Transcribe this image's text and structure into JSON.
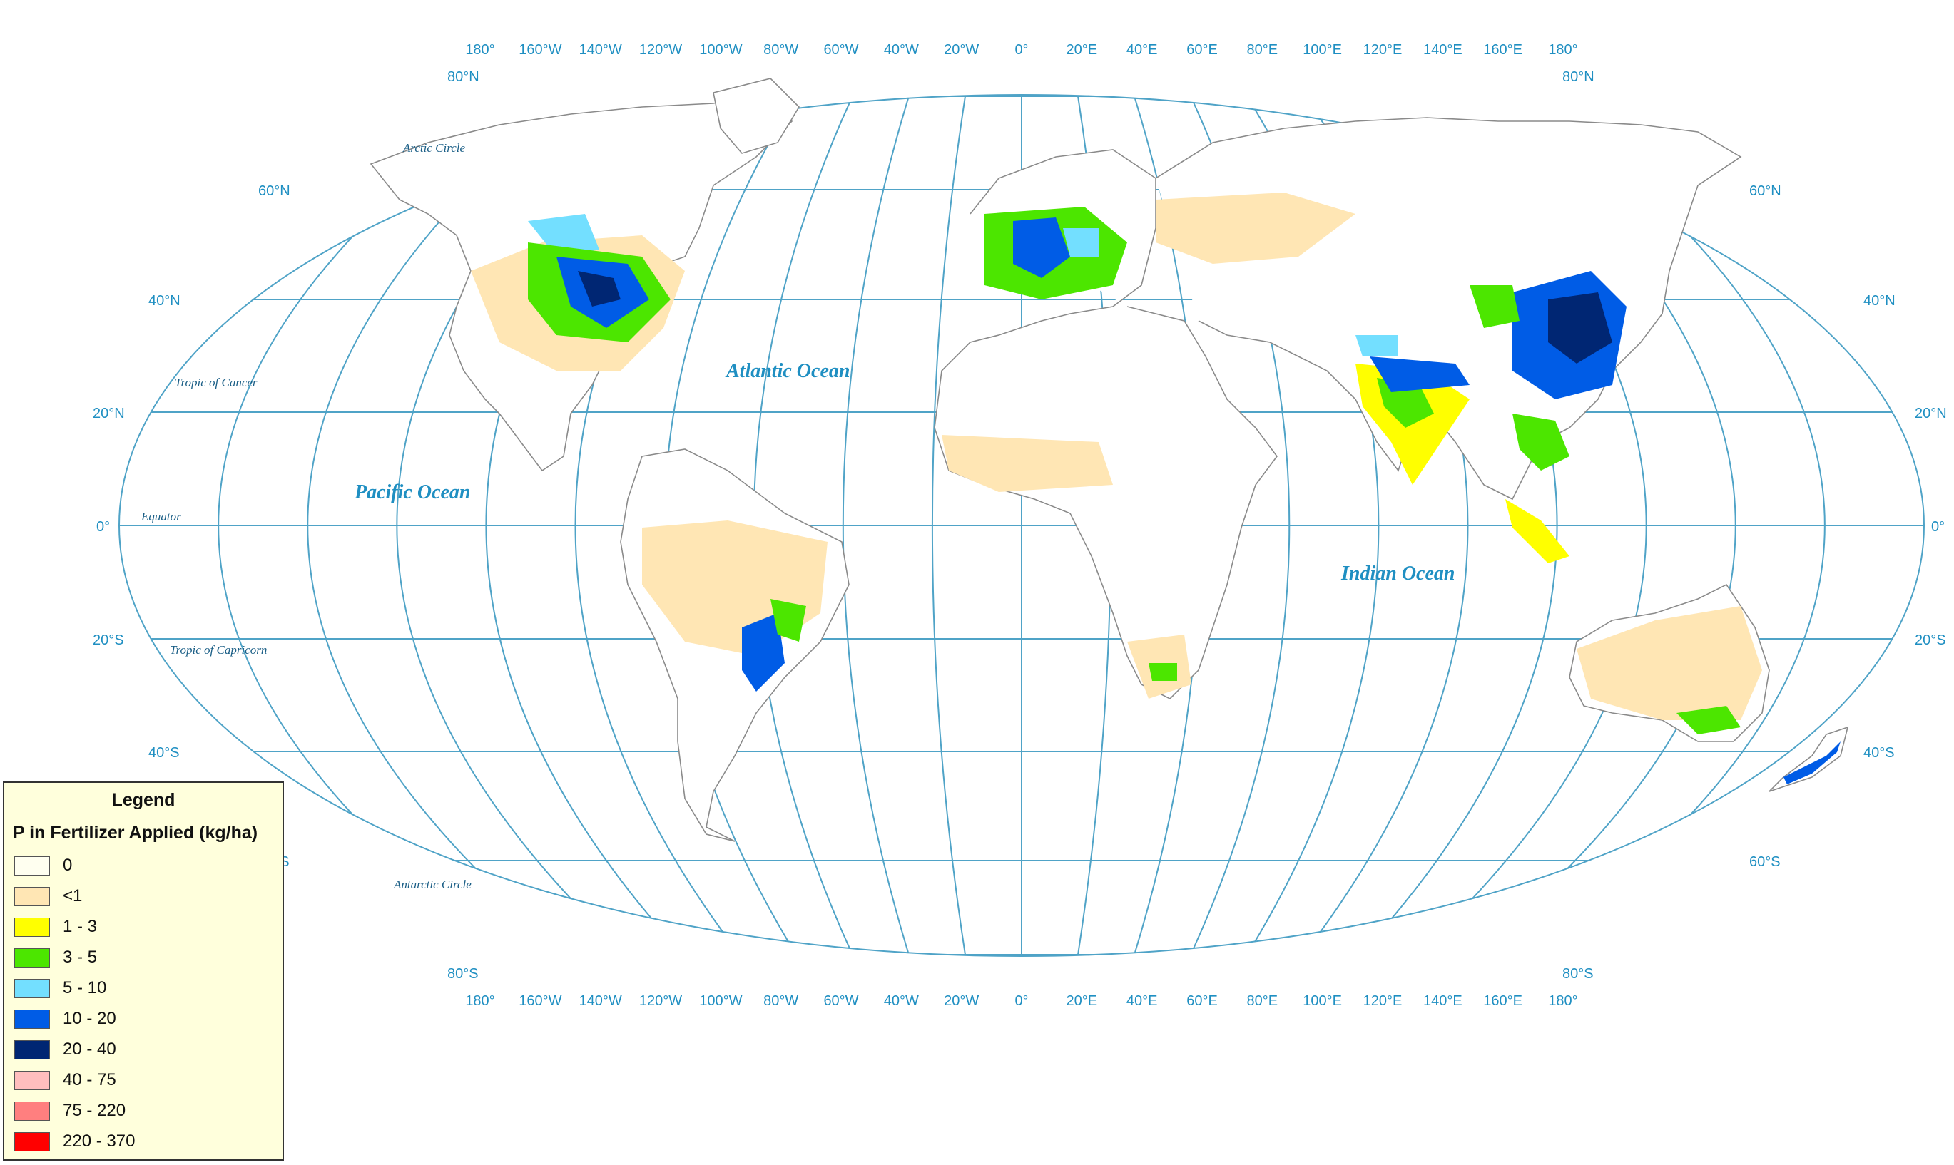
{
  "graticule": {
    "longitude_labels": [
      "180°",
      "160°W",
      "140°W",
      "120°W",
      "100°W",
      "80°W",
      "60°W",
      "40°W",
      "20°W",
      "0°",
      "20°E",
      "40°E",
      "60°E",
      "80°E",
      "100°E",
      "120°E",
      "140°E",
      "160°E",
      "180°"
    ],
    "latitude_labels": {
      "n80": "80°N",
      "n60": "60°N",
      "n40": "40°N",
      "n20": "20°N",
      "eq": "0°",
      "s20": "20°S",
      "s40": "40°S",
      "s60": "60°S",
      "s80": "80°S"
    }
  },
  "reference_lines": {
    "arctic": "Arctic Circle",
    "cancer": "Tropic of Cancer",
    "equator": "Equator",
    "capricorn": "Tropic of Capricorn",
    "antarctic": "Antarctic Circle"
  },
  "oceans": {
    "atlantic": "Atlantic Ocean",
    "pacific": "Pacific Ocean",
    "indian": "Indian Ocean"
  },
  "legend": {
    "title": "Legend",
    "subtitle": "P in Fertilizer Applied (kg/ha)",
    "items": [
      {
        "label": "0",
        "color": "#fffff0"
      },
      {
        "label": "<1",
        "color": "#ffe6b4"
      },
      {
        "label": "1 - 3",
        "color": "#ffff00"
      },
      {
        "label": "3 - 5",
        "color": "#4ce600"
      },
      {
        "label": "5 - 10",
        "color": "#73dfff"
      },
      {
        "label": "10 - 20",
        "color": "#005ce6"
      },
      {
        "label": "20 - 40",
        "color": "#002673"
      },
      {
        "label": "40 - 75",
        "color": "#ffbebe"
      },
      {
        "label": "75 - 220",
        "color": "#ff7f7f"
      },
      {
        "label": "220 - 370",
        "color": "#ff0000"
      }
    ]
  }
}
